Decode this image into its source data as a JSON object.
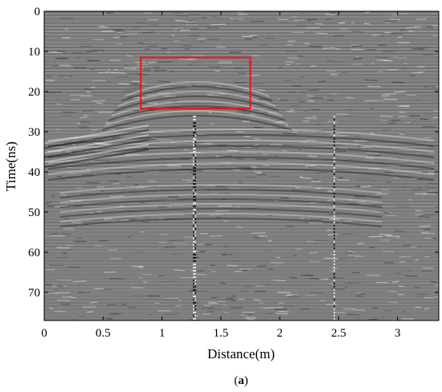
{
  "chart_data": {
    "type": "heatmap",
    "description_kind": "radargram",
    "title": "",
    "xlabel": "Distance(m)",
    "ylabel": "Time(ns)",
    "xlim": [
      0,
      3.35
    ],
    "ylim": [
      0,
      77
    ],
    "y_inverted": true,
    "x_ticks": [
      {
        "value": 0,
        "label": "0"
      },
      {
        "value": 0.5,
        "label": "0.5"
      },
      {
        "value": 1,
        "label": "1"
      },
      {
        "value": 1.5,
        "label": "1.5"
      },
      {
        "value": 2,
        "label": "2"
      },
      {
        "value": 2.5,
        "label": "2.5"
      },
      {
        "value": 3,
        "label": "3"
      }
    ],
    "y_ticks": [
      {
        "value": 0,
        "label": "0"
      },
      {
        "value": 10,
        "label": "10"
      },
      {
        "value": 20,
        "label": "20"
      },
      {
        "value": 30,
        "label": "30"
      },
      {
        "value": 40,
        "label": "40"
      },
      {
        "value": 50,
        "label": "50"
      },
      {
        "value": 60,
        "label": "60"
      },
      {
        "value": 70,
        "label": "70"
      }
    ],
    "colormap": "gray",
    "grid": false,
    "annotations": [
      {
        "kind": "rectangle",
        "x_range": [
          0.82,
          1.75
        ],
        "y_range": [
          11.5,
          24.2
        ],
        "color": "#e8141c"
      }
    ],
    "caption": {
      "open": "(",
      "letter": "a",
      "close": ")"
    }
  }
}
